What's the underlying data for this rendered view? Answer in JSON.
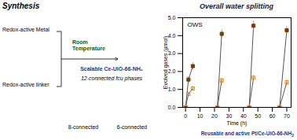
{
  "chart_data": {
    "type": "line",
    "title": "Overall water splitting",
    "xlabel": "Time (h)",
    "ylabel": "Evolved gases (μmol)",
    "xlim": [
      -2,
      73
    ],
    "xticks": [
      0,
      10,
      20,
      30,
      40,
      50,
      60,
      70
    ],
    "ylim": [
      0,
      5
    ],
    "yticks": [
      0,
      1,
      2,
      3,
      4,
      5
    ],
    "grid": false,
    "color": "#555555",
    "x": [
      0,
      2,
      5,
      null,
      22,
      25,
      null,
      44,
      47,
      null,
      65,
      70
    ],
    "series": [
      {
        "color": "#7B3B00",
        "marker": "square",
        "values": [
          0,
          1.55,
          2.3,
          null,
          0,
          4.1,
          null,
          0,
          4.55,
          null,
          0,
          4.3
        ],
        "yerr": [
          0,
          0.15,
          0.2,
          null,
          0,
          0.22,
          null,
          0,
          0.25,
          null,
          0,
          0.22
        ]
      },
      {
        "color": "#E8820A",
        "marker": "open_square",
        "values": [
          0,
          0.75,
          1.05,
          null,
          0,
          1.5,
          null,
          0,
          1.65,
          null,
          0,
          1.4
        ],
        "yerr": [
          0,
          0.08,
          0.1,
          null,
          0,
          0.13,
          null,
          0,
          0.14,
          null,
          0,
          0.13
        ]
      }
    ],
    "annotations": [
      "OWS",
      "Reusable and active Pt/Ce-UiO-66-NH",
      "2",
      "Synthesis",
      "Room\nTemperature",
      "Scalable Ce-UiO-66-NH₂",
      "12-connected fcu phases",
      "Redox-active Metal",
      "Redox-active linker",
      "8-connected",
      "6-connected"
    ]
  }
}
